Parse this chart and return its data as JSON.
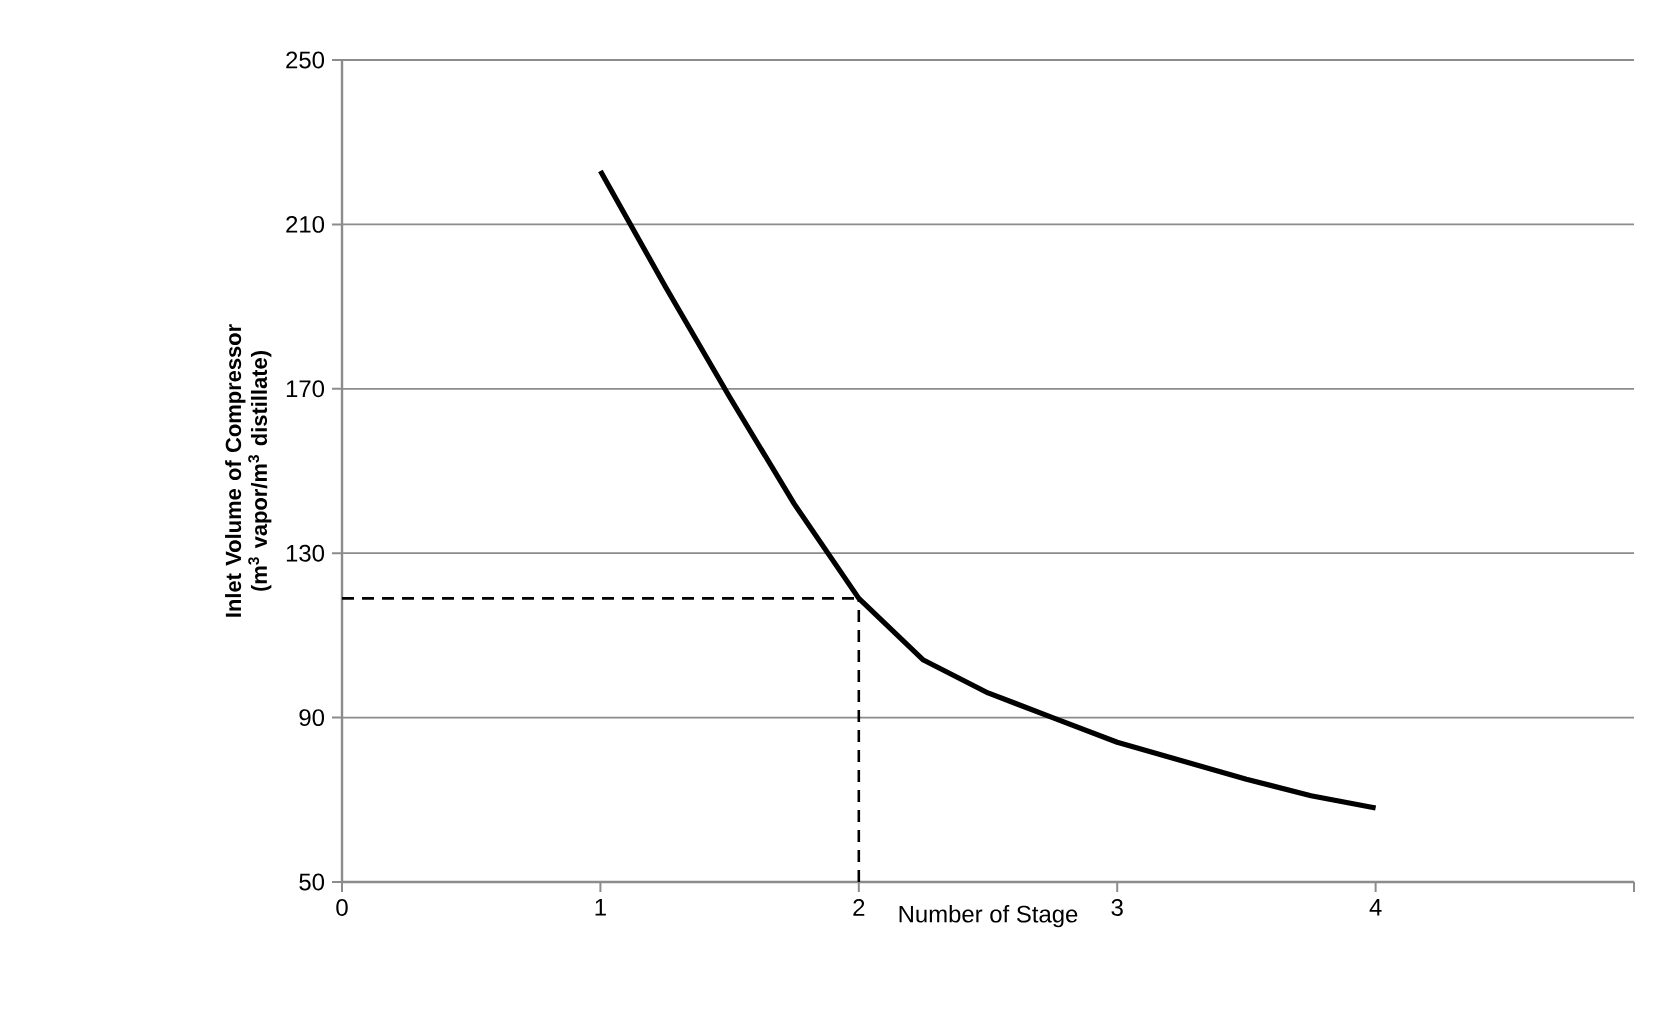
{
  "chart_data": {
    "type": "line",
    "xlabel": "Number of Stage",
    "ylabel": "Inlet Volume of Compressor (m$^{3}$ vapor/m$^{3}$ distillate)",
    "x": [
      1,
      1.25,
      1.5,
      1.75,
      2,
      2.25,
      2.5,
      2.75,
      3,
      3.25,
      3.5,
      3.75,
      4
    ],
    "series": [
      {
        "color": "#000000",
        "values": [
          223,
          195,
          168,
          142,
          119,
          104,
          96,
          90,
          84,
          79.5,
          75,
          71,
          68
        ]
      }
    ],
    "xlim": [
      0,
      5
    ],
    "xticks": [
      0,
      1,
      2,
      3,
      4,
      {
        "value": 5,
        "label": null
      }
    ],
    "ylim": [
      50,
      250
    ],
    "yticks": [
      50,
      90,
      130,
      170,
      210,
      250
    ],
    "grid": "y",
    "line_style": "solid",
    "marker": "none",
    "ref_lines": [
      {
        "axis": "x",
        "value": 2,
        "color": "#000000",
        "line_style": "dashed"
      },
      {
        "axis": "y",
        "value": 119,
        "color": "#000000",
        "line_style": "dashed"
      }
    ]
  }
}
